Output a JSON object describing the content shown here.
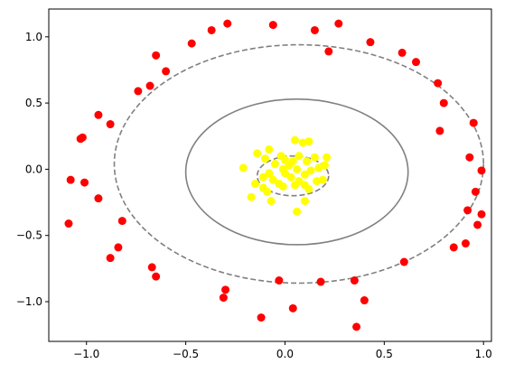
{
  "chart_data": {
    "type": "scatter",
    "title": "",
    "xlabel": "",
    "ylabel": "",
    "xlim": [
      -1.19,
      1.04
    ],
    "ylim": [
      -1.3,
      1.21
    ],
    "grid": false,
    "x_ticks": [
      -1.0,
      -0.5,
      0.0,
      0.5,
      1.0
    ],
    "x_tick_labels": [
      "−1.0",
      "−0.5",
      "0.0",
      "0.5",
      "1.0"
    ],
    "y_ticks": [
      1.0,
      0.5,
      0.0,
      -0.5,
      -1.0
    ],
    "y_tick_labels": [
      "1.0",
      "0.5",
      "0.0",
      "−0.5",
      "−1.0"
    ],
    "series": [
      {
        "color": "#ff0000",
        "points": [
          [
            -0.29,
            1.1
          ],
          [
            -0.06,
            1.09
          ],
          [
            0.27,
            1.1
          ],
          [
            -0.37,
            1.05
          ],
          [
            0.15,
            1.05
          ],
          [
            -0.47,
            0.95
          ],
          [
            0.43,
            0.96
          ],
          [
            -0.65,
            0.86
          ],
          [
            0.22,
            0.89
          ],
          [
            0.59,
            0.88
          ],
          [
            0.66,
            0.81
          ],
          [
            -0.6,
            0.74
          ],
          [
            -0.68,
            0.63
          ],
          [
            -0.74,
            0.59
          ],
          [
            0.77,
            0.65
          ],
          [
            0.8,
            0.5
          ],
          [
            -0.94,
            0.41
          ],
          [
            -0.88,
            0.34
          ],
          [
            0.95,
            0.35
          ],
          [
            0.78,
            0.29
          ],
          [
            -1.02,
            0.24
          ],
          [
            -1.03,
            0.23
          ],
          [
            0.93,
            0.09
          ],
          [
            0.99,
            -0.01
          ],
          [
            -1.08,
            -0.08
          ],
          [
            -1.01,
            -0.1
          ],
          [
            0.96,
            -0.17
          ],
          [
            -0.94,
            -0.22
          ],
          [
            0.92,
            -0.31
          ],
          [
            0.99,
            -0.34
          ],
          [
            -0.82,
            -0.39
          ],
          [
            -1.09,
            -0.41
          ],
          [
            0.97,
            -0.42
          ],
          [
            0.91,
            -0.56
          ],
          [
            -0.84,
            -0.59
          ],
          [
            0.85,
            -0.59
          ],
          [
            -0.88,
            -0.67
          ],
          [
            0.6,
            -0.7
          ],
          [
            -0.67,
            -0.74
          ],
          [
            -0.65,
            -0.81
          ],
          [
            -0.03,
            -0.84
          ],
          [
            0.18,
            -0.85
          ],
          [
            0.35,
            -0.84
          ],
          [
            -0.3,
            -0.91
          ],
          [
            -0.31,
            -0.97
          ],
          [
            0.4,
            -0.99
          ],
          [
            0.04,
            -1.05
          ],
          [
            -0.12,
            -1.12
          ],
          [
            0.36,
            -1.19
          ]
        ]
      },
      {
        "color": "#ffff00",
        "points": [
          [
            0.05,
            0.22
          ],
          [
            0.12,
            0.21
          ],
          [
            0.09,
            0.2
          ],
          [
            -0.08,
            0.15
          ],
          [
            -0.14,
            0.12
          ],
          [
            -0.02,
            0.1
          ],
          [
            0.07,
            0.1
          ],
          [
            0.15,
            0.09
          ],
          [
            0.21,
            0.09
          ],
          [
            -0.1,
            0.08
          ],
          [
            0.0,
            0.07
          ],
          [
            0.04,
            0.06
          ],
          [
            0.11,
            0.06
          ],
          [
            -0.05,
            0.04
          ],
          [
            0.02,
            0.03
          ],
          [
            0.2,
            0.03
          ],
          [
            -0.21,
            0.01
          ],
          [
            -0.01,
            0.0
          ],
          [
            0.06,
            0.0
          ],
          [
            0.13,
            -0.01
          ],
          [
            0.17,
            0.01
          ],
          [
            -0.08,
            -0.03
          ],
          [
            0.0,
            -0.03
          ],
          [
            0.1,
            -0.04
          ],
          [
            -0.11,
            -0.06
          ],
          [
            0.03,
            -0.06
          ],
          [
            0.19,
            -0.08
          ],
          [
            -0.06,
            -0.08
          ],
          [
            0.07,
            -0.09
          ],
          [
            0.16,
            -0.09
          ],
          [
            -0.15,
            -0.11
          ],
          [
            -0.03,
            -0.11
          ],
          [
            0.05,
            -0.12
          ],
          [
            0.1,
            -0.12
          ],
          [
            -0.01,
            -0.13
          ],
          [
            -0.11,
            -0.14
          ],
          [
            0.12,
            -0.15
          ],
          [
            -0.09,
            -0.17
          ],
          [
            -0.17,
            -0.21
          ],
          [
            0.1,
            -0.24
          ],
          [
            -0.07,
            -0.24
          ],
          [
            0.06,
            -0.32
          ]
        ]
      }
    ],
    "contours": [
      {
        "style": "dashed",
        "center": [
          0.04,
          -0.05
        ],
        "rx": 0.18,
        "ry": 0.15
      },
      {
        "style": "solid",
        "center": [
          0.06,
          -0.02
        ],
        "rx": 0.56,
        "ry": 0.55
      },
      {
        "style": "dashed",
        "center": [
          0.07,
          0.04
        ],
        "rx": 0.93,
        "ry": 0.9
      }
    ]
  }
}
